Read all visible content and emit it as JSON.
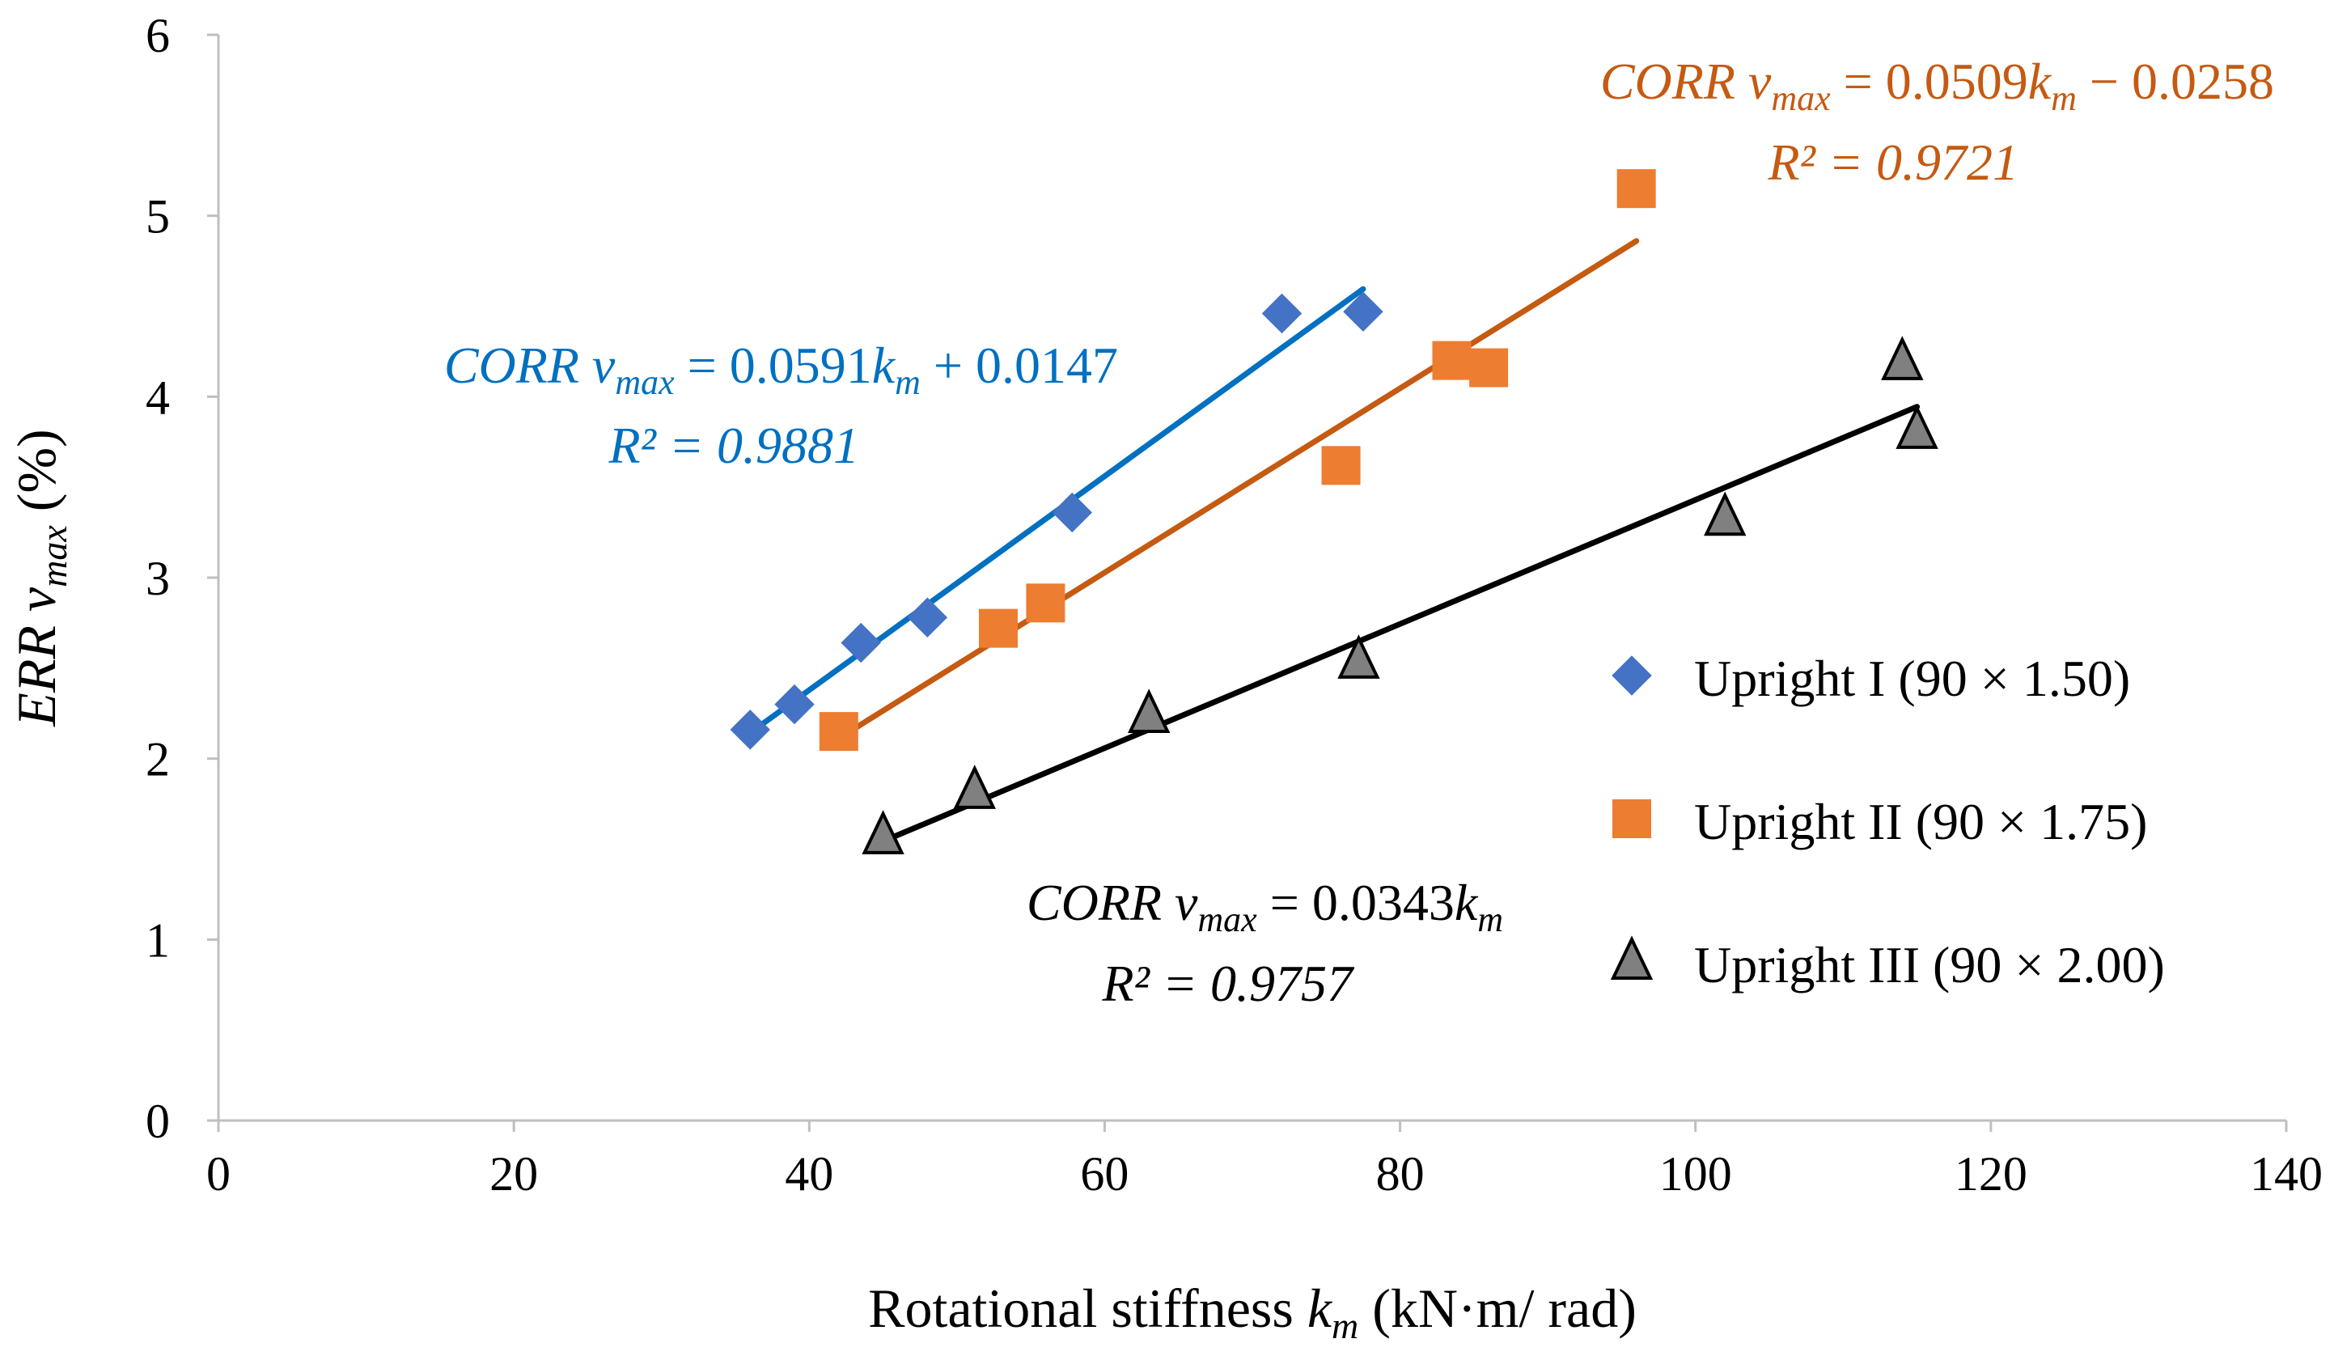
{
  "chart_data": {
    "type": "scatter",
    "title": "",
    "xlabel": {
      "pre": "Rotational stiffness ",
      "var": "k",
      "sub": "m",
      "post": " (kN·m/ rad)"
    },
    "ylabel": {
      "var": "ERR v",
      "sub": "max",
      "post": " (%)"
    },
    "xlim": [
      0,
      140
    ],
    "ylim": [
      0,
      6
    ],
    "xticks": [
      0,
      20,
      40,
      60,
      80,
      100,
      120,
      140
    ],
    "yticks": [
      0,
      1,
      2,
      3,
      4,
      5,
      6
    ],
    "grid": false,
    "legend_position": "right",
    "series": [
      {
        "name": "Upright I (90 × 1.50)",
        "marker": "diamond",
        "color": "#4472C4",
        "line_color": "#0070C0",
        "points": [
          [
            36,
            2.16
          ],
          [
            39,
            2.3
          ],
          [
            43.5,
            2.64
          ],
          [
            48,
            2.78
          ],
          [
            57.8,
            3.36
          ],
          [
            72,
            4.46
          ],
          [
            77.5,
            4.47
          ]
        ],
        "fit": {
          "slope": 0.0591,
          "intercept": 0.0147,
          "x_range": [
            36,
            77.5
          ]
        },
        "equation": {
          "corr": "CORR",
          "v": "v",
          "sub": "max",
          "rhs": " = 0.0591",
          "k": "k",
          "ksub": "m",
          "tail": " + 0.0147",
          "r2": "R² = 0.9881"
        }
      },
      {
        "name": "Upright II (90 × 1.75)",
        "marker": "square",
        "color": "#ED7D31",
        "line_color": "#C55A11",
        "points": [
          [
            42,
            2.15
          ],
          [
            52.8,
            2.72
          ],
          [
            56,
            2.86
          ],
          [
            76,
            3.62
          ],
          [
            83.5,
            4.2
          ],
          [
            86,
            4.16
          ],
          [
            96,
            5.15
          ]
        ],
        "fit": {
          "slope": 0.0509,
          "intercept": -0.0258,
          "x_range": [
            42,
            96
          ]
        },
        "equation": {
          "corr": "CORR",
          "v": "v",
          "sub": "max",
          "rhs": " = 0.0509",
          "k": "k",
          "ksub": "m",
          "tail": " − 0.0258",
          "r2": "R² = 0.9721"
        }
      },
      {
        "name": "Upright III (90 × 2.00)",
        "marker": "triangle",
        "color": "#808080",
        "line_color": "#000000",
        "points": [
          [
            45,
            1.57
          ],
          [
            51.2,
            1.82
          ],
          [
            63,
            2.24
          ],
          [
            77.2,
            2.54
          ],
          [
            102,
            3.33
          ],
          [
            114,
            4.19
          ],
          [
            115,
            3.81
          ]
        ],
        "fit": {
          "slope": 0.0343,
          "intercept": 0,
          "x_range": [
            45,
            115
          ]
        },
        "equation": {
          "corr": "CORR",
          "v": "v",
          "sub": "max",
          "rhs": "  = 0.0343",
          "k": "k",
          "ksub": "m",
          "tail": "",
          "r2": "R² = 0.9757"
        }
      }
    ]
  }
}
